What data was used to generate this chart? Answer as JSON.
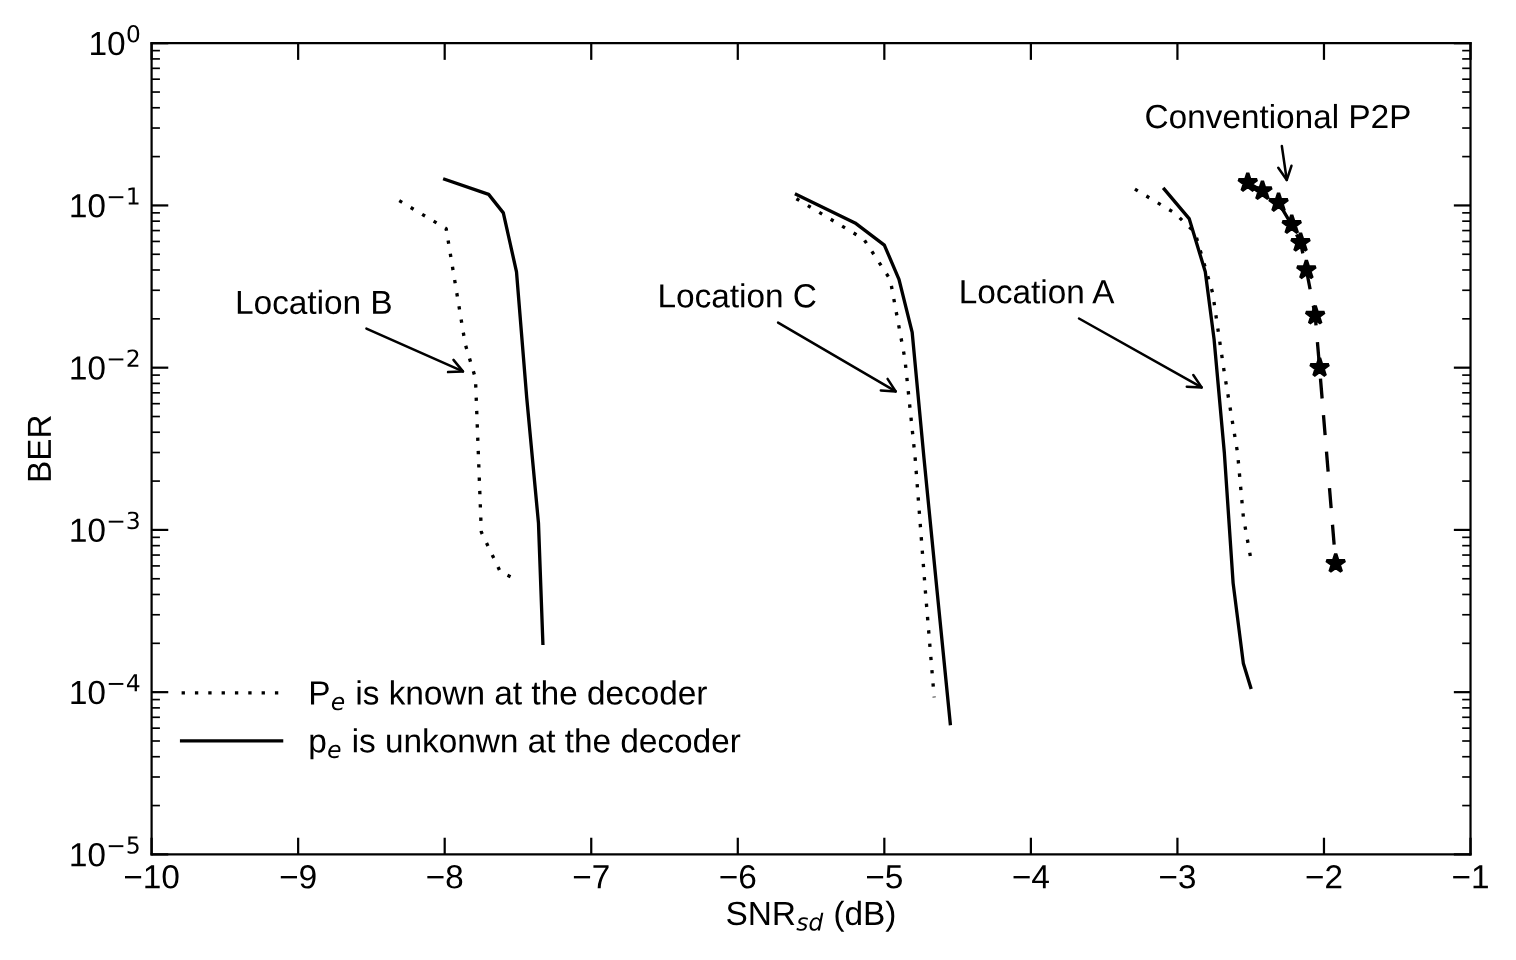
{
  "chart_data": {
    "type": "line",
    "xlabel": "SNR$_{sd}$ (dB)",
    "ylabel": "BER",
    "log": "y",
    "xlim": [
      -10,
      -1
    ],
    "xticks": [
      {
        "value": -10,
        "label": "−10"
      },
      {
        "value": -9,
        "label": "−9"
      },
      {
        "value": -8,
        "label": "−8"
      },
      {
        "value": -7,
        "label": "−7"
      },
      {
        "value": -6,
        "label": "−6"
      },
      {
        "value": -5,
        "label": "−5"
      },
      {
        "value": -4,
        "label": "−4"
      },
      {
        "value": -3,
        "label": "−3"
      },
      {
        "value": -2,
        "label": "−2"
      },
      {
        "value": -1,
        "label": "−1"
      }
    ],
    "ylim": [
      1e-05,
      1
    ],
    "yticks": [
      {
        "value": 1e-05,
        "label": "10$^{−5}$"
      },
      {
        "value": 0.0001,
        "label": "10$^{−4}$"
      },
      {
        "value": 0.001,
        "label": "10$^{−3}$"
      },
      {
        "value": 0.01,
        "label": "10$^{−2}$"
      },
      {
        "value": 0.1,
        "label": "10$^{−1}$"
      },
      {
        "value": 1,
        "label": "10$^{0}$"
      }
    ],
    "grid": false,
    "legend": "bottom left",
    "series": [
      {
        "name": "P$_{e}$ is known at the decoder",
        "color": "#000000",
        "line_style": "dotted",
        "marker": "none",
        "x": [
          -8.31,
          -7.99,
          -7.86,
          -7.79,
          -7.75,
          -7.62,
          -7.52
        ],
        "values": [
          0.107,
          0.072,
          0.014,
          0.0086,
          0.00097,
          0.00055,
          0.0005
        ]
      },
      {
        "name": "p$_{e}$ is unkonwn at the decoder",
        "color": "#000000",
        "line_style": "solid",
        "marker": "none",
        "x": [
          -8.0,
          -7.7,
          -7.6,
          -7.51,
          -7.44,
          -7.36,
          -7.33
        ],
        "values": [
          0.145,
          0.117,
          0.09,
          0.039,
          0.0065,
          0.0011,
          0.0002
        ]
      },
      {
        "color": "#000000",
        "line_style": "dotted",
        "marker": "none",
        "x": [
          -5.6,
          -5.14,
          -4.96,
          -4.86,
          -4.79,
          -4.72,
          -4.66
        ],
        "values": [
          0.11,
          0.062,
          0.035,
          0.0114,
          0.0028,
          0.00042,
          9.3e-05
        ]
      },
      {
        "color": "#000000",
        "line_style": "solid",
        "marker": "none",
        "x": [
          -5.6,
          -5.2,
          -5.0,
          -4.9,
          -4.81,
          -4.73,
          -4.64,
          -4.55
        ],
        "values": [
          0.117,
          0.078,
          0.057,
          0.035,
          0.0165,
          0.0028,
          0.00042,
          6.4e-05
        ]
      },
      {
        "color": "#000000",
        "line_style": "dotted",
        "marker": "none",
        "x": [
          -3.29,
          -3.02,
          -2.88,
          -2.76,
          -2.68,
          -2.59,
          -2.55,
          -2.5
        ],
        "values": [
          0.126,
          0.09,
          0.068,
          0.029,
          0.0093,
          0.003,
          0.0012,
          0.00067
        ]
      },
      {
        "color": "#000000",
        "line_style": "solid",
        "marker": "none",
        "x": [
          -3.09,
          -2.92,
          -2.81,
          -2.75,
          -2.68,
          -2.62,
          -2.55,
          -2.5
        ],
        "values": [
          0.126,
          0.083,
          0.039,
          0.015,
          0.003,
          0.00047,
          0.00015,
          0.000107
        ]
      },
      {
        "color": "#000000",
        "line_style": "dashed",
        "marker": "star",
        "x": [
          -2.52,
          -2.42,
          -2.31,
          -2.22,
          -2.16,
          -2.12,
          -2.06,
          -2.03,
          -1.92
        ],
        "values": [
          0.138,
          0.123,
          0.104,
          0.076,
          0.059,
          0.04,
          0.021,
          0.01,
          0.00062
        ]
      }
    ],
    "annotations": [
      "Location B",
      "Location C",
      "Location A",
      "Conventional P2P"
    ]
  }
}
